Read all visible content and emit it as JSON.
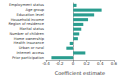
{
  "chart_data": {
    "type": "bar",
    "orientation": "horizontal",
    "x_label": "Coefficient estimate",
    "categories": [
      "Employment status",
      "Age group",
      "Education level",
      "Household income",
      "Region of residence",
      "Marital status",
      "Number of children",
      "Home ownership",
      "Health insurance",
      "Urban or rural",
      "Internet access",
      "Prior participation"
    ],
    "values": [
      0.05,
      0.42,
      0.31,
      0.22,
      0.15,
      0.12,
      0.09,
      0.07,
      -0.05,
      -0.1,
      0.18,
      -0.32
    ],
    "color": "#2a9d8f",
    "xlim": [
      -0.4,
      0.6
    ],
    "xticks": [
      -0.4,
      -0.2,
      0,
      0.2,
      0.4,
      0.6
    ],
    "grid": false
  }
}
